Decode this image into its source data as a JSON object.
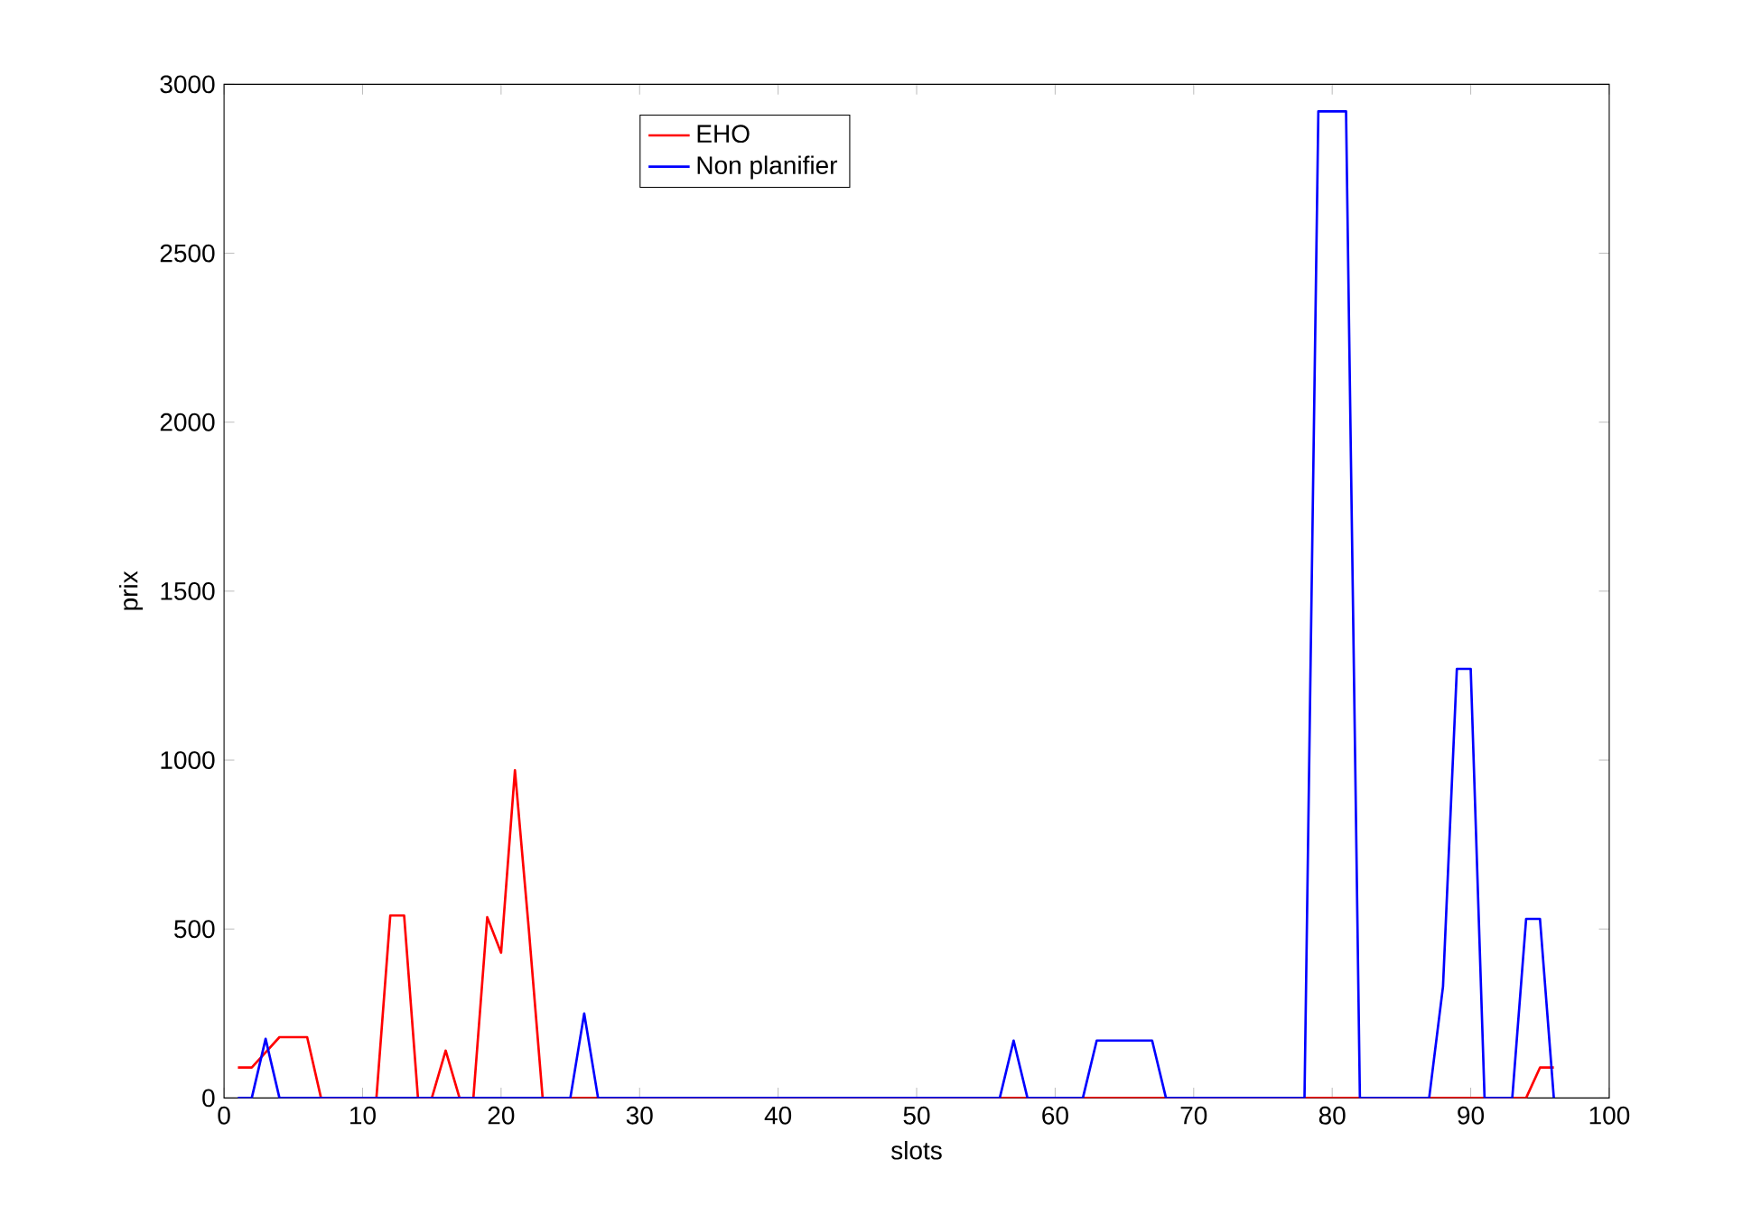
{
  "chart_data": {
    "type": "line",
    "xlabel": "slots",
    "ylabel": "prix",
    "xlim": [
      0,
      100
    ],
    "ylim": [
      0,
      3000
    ],
    "xticks": [
      0,
      10,
      20,
      30,
      40,
      50,
      60,
      70,
      80,
      90,
      100
    ],
    "yticks": [
      0,
      500,
      1000,
      1500,
      2000,
      2500,
      3000
    ],
    "legend": "top",
    "grid": false,
    "marker": "none",
    "line_style": "solid",
    "series": [
      {
        "name": "EHO",
        "color": "#ff0000",
        "x": [
          1,
          2,
          3,
          4,
          5,
          6,
          7,
          11,
          12,
          13,
          14,
          15,
          16,
          17,
          18,
          19,
          20,
          21,
          22,
          23,
          94,
          95,
          96
        ],
        "values": [
          90,
          90,
          135,
          180,
          180,
          180,
          0,
          0,
          540,
          540,
          0,
          0,
          140,
          0,
          0,
          535,
          430,
          970,
          500,
          0,
          0,
          90,
          90
        ]
      },
      {
        "name": "Non planifier",
        "color": "#0000ff",
        "x": [
          1,
          2,
          3,
          4,
          25,
          26,
          27,
          56,
          57,
          58,
          62,
          63,
          64,
          65,
          66,
          67,
          68,
          78,
          79,
          80,
          81,
          82,
          87,
          88,
          89,
          90,
          91,
          93,
          94,
          95,
          96
        ],
        "values": [
          0,
          0,
          175,
          0,
          0,
          250,
          0,
          0,
          170,
          0,
          0,
          170,
          170,
          170,
          170,
          170,
          0,
          0,
          2920,
          2920,
          2920,
          0,
          0,
          330,
          1270,
          1270,
          0,
          0,
          530,
          530,
          0
        ]
      }
    ]
  }
}
